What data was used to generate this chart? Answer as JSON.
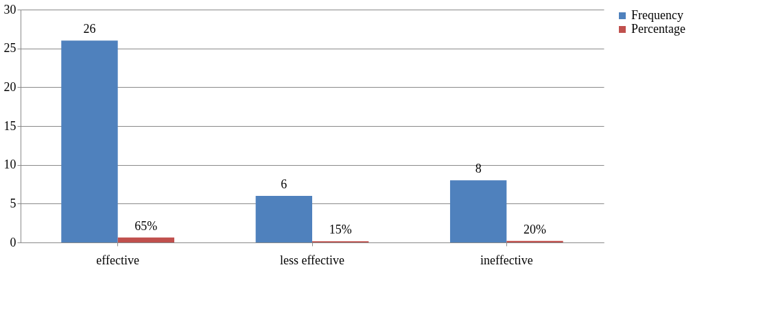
{
  "chart_data": {
    "type": "bar",
    "categories": [
      "effective",
      "less effective",
      "ineffective"
    ],
    "series": [
      {
        "name": "Frequency",
        "color": "#4f81bd",
        "values": [
          26,
          6,
          8
        ],
        "value_labels": [
          "26",
          "6",
          "8"
        ]
      },
      {
        "name": "Percentage",
        "color": "#c0504d",
        "values": [
          0.65,
          0.15,
          0.2
        ],
        "value_labels": [
          "65%",
          "15%",
          "20%"
        ]
      }
    ],
    "ylim": [
      0,
      30
    ],
    "yticks": [
      0,
      5,
      10,
      15,
      20,
      25,
      30
    ],
    "grid": "y",
    "legend": "right"
  }
}
